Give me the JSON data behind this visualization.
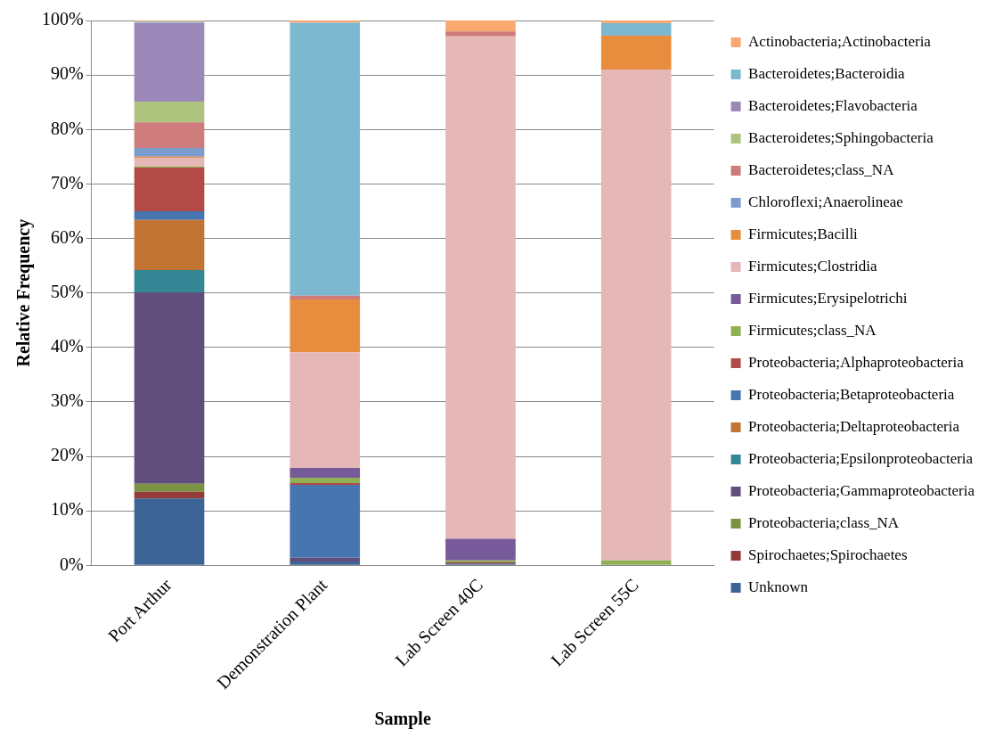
{
  "chart_data": {
    "type": "bar",
    "stacked": true,
    "xlabel": "Sample",
    "ylabel": "Relative Frequency",
    "categories": [
      "Port Arthur",
      "Demonstration Plant",
      "Lab Screen 40C",
      "Lab Screen 55C"
    ],
    "ylim": [
      0,
      100
    ],
    "yticks": [
      {
        "value": 0,
        "label": "0%"
      },
      {
        "value": 10,
        "label": "10%"
      },
      {
        "value": 20,
        "label": "20%"
      },
      {
        "value": 30,
        "label": "30%"
      },
      {
        "value": 40,
        "label": "40%"
      },
      {
        "value": 50,
        "label": "50%"
      },
      {
        "value": 60,
        "label": "60%"
      },
      {
        "value": 70,
        "label": "70%"
      },
      {
        "value": 80,
        "label": "80%"
      },
      {
        "value": 90,
        "label": "90%"
      },
      {
        "value": 100,
        "label": "100%"
      }
    ],
    "grid": "y",
    "legend": "right",
    "series": [
      {
        "name": "Unknown",
        "color": "#3d6496",
        "values": [
          12.3,
          0.7,
          0.3,
          0
        ]
      },
      {
        "name": "Spirochaetes;Spirochaetes",
        "color": "#943a38",
        "values": [
          1.2,
          0,
          0.3,
          0
        ]
      },
      {
        "name": "Proteobacteria;class_NA",
        "color": "#7a9342",
        "values": [
          1.5,
          0,
          0,
          0
        ]
      },
      {
        "name": "Proteobacteria;Gammaproteobacteria",
        "color": "#614e7d",
        "values": [
          35.1,
          0.7,
          0,
          0
        ]
      },
      {
        "name": "Proteobacteria;Epsilonproteobacteria",
        "color": "#358796",
        "values": [
          4.1,
          0,
          0,
          0
        ]
      },
      {
        "name": "Proteobacteria;Deltaproteobacteria",
        "color": "#c27433",
        "values": [
          9.2,
          0,
          0,
          0
        ]
      },
      {
        "name": "Proteobacteria;Betaproteobacteria",
        "color": "#4775b0",
        "values": [
          1.6,
          13.4,
          0,
          0
        ]
      },
      {
        "name": "Proteobacteria;Alphaproteobacteria",
        "color": "#b24a47",
        "values": [
          8.0,
          0.3,
          0,
          0
        ]
      },
      {
        "name": "Firmicutes;class_NA",
        "color": "#8fb054",
        "values": [
          0.2,
          1.0,
          0.3,
          0.9
        ]
      },
      {
        "name": "Firmicutes;Erysipelotrichi",
        "color": "#775a99",
        "values": [
          0,
          1.8,
          4.0,
          0
        ]
      },
      {
        "name": "Firmicutes;Clostridia",
        "color": "#e5b7b7",
        "values": [
          1.6,
          21.2,
          92.2,
          90.1
        ]
      },
      {
        "name": "Firmicutes;Bacilli",
        "color": "#e88c3e",
        "values": [
          0.2,
          9.7,
          0,
          6.2
        ]
      },
      {
        "name": "Chloroflexi;Anaerolineae",
        "color": "#7b9ccc",
        "values": [
          1.6,
          0,
          0,
          0
        ]
      },
      {
        "name": "Bacteroidetes;class_NA",
        "color": "#cd7c7b",
        "values": [
          4.7,
          0.7,
          0.9,
          0
        ]
      },
      {
        "name": "Bacteroidetes;Sphingobacteria",
        "color": "#aec47e",
        "values": [
          3.8,
          0,
          0,
          0
        ]
      },
      {
        "name": "Bacteroidetes;Flavobacteria",
        "color": "#9c88b8",
        "values": [
          14.5,
          0,
          0,
          0
        ]
      },
      {
        "name": "Bacteroidetes;Bacteroidia",
        "color": "#7cb9d0",
        "values": [
          0.2,
          50.1,
          0,
          2.3
        ]
      },
      {
        "name": "Actinobacteria;Actinobacteria",
        "color": "#f9a870",
        "values": [
          0.2,
          0.5,
          2.1,
          0.5
        ]
      }
    ]
  }
}
